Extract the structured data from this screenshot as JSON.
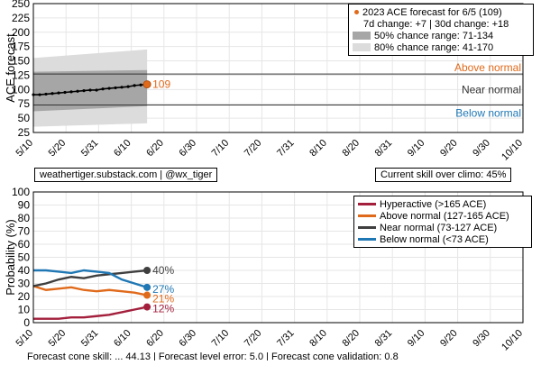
{
  "top_chart": {
    "ylabel": "ACE forecast",
    "zone_labels": {
      "above": "Above normal",
      "near": "Near normal",
      "below": "Below normal"
    },
    "point_label": "109",
    "legend": {
      "line1": "2023 ACE forecast for 6/5 (109)",
      "line2": "7d change: +7 | 30d change: +18",
      "band50": "50% chance range: 71-134",
      "band80": "80% chance range: 41-170"
    },
    "info_left": "weathertiger.substack.com | @wx_tiger",
    "info_right": "Current skill over climo: 45%"
  },
  "bottom_chart": {
    "ylabel": "Probability (%)",
    "legend": [
      {
        "label": "Hyperactive (>165 ACE)",
        "color": "#a31f3c"
      },
      {
        "label": "Above normal (127-165 ACE)",
        "color": "#e06a1b"
      },
      {
        "label": "Near normal (73-127 ACE)",
        "color": "#3f3f3f"
      },
      {
        "label": "Below normal (<73 ACE)",
        "color": "#1f77b4"
      }
    ],
    "end_labels": [
      "12%",
      "21%",
      "40%",
      "27%"
    ]
  },
  "footer": {
    "text": "Forecast cone skill: ... 44.13 | Forecast level error: 5.0 | Forecast cone validation: 0.8"
  },
  "chart_data": [
    {
      "type": "line",
      "title": "",
      "ylabel": "ACE forecast",
      "ylim": [
        25,
        250
      ],
      "yticks": [
        25,
        50,
        75,
        100,
        125,
        150,
        175,
        200,
        225,
        250
      ],
      "xticks": [
        "5/10",
        "5/20",
        "5/31",
        "6/10",
        "6/20",
        "6/30",
        "7/10",
        "7/20",
        "7/31",
        "8/10",
        "8/20",
        "8/31",
        "9/10",
        "9/20",
        "9/30",
        "10/10"
      ],
      "x_day_range": [
        0,
        155
      ],
      "thresholds": {
        "above_normal": 127,
        "below_normal": 73
      },
      "grid": true,
      "legend_position": "top-right",
      "series": [
        {
          "name": "2023 ACE forecast",
          "x_days": [
            0,
            2,
            4,
            6,
            8,
            10,
            12,
            14,
            16,
            18,
            20,
            22,
            24,
            26,
            28,
            30,
            32,
            34,
            36
          ],
          "values": [
            91,
            91,
            92,
            93,
            94,
            95,
            96,
            97,
            98,
            99,
            99,
            101,
            102,
            103,
            104,
            105,
            107,
            108,
            109
          ]
        }
      ],
      "band_50": {
        "x_days": [
          0,
          36
        ],
        "low": [
          62,
          71
        ],
        "high": [
          131,
          134
        ]
      },
      "band_80": {
        "x_days": [
          0,
          36
        ],
        "low": [
          35,
          41
        ],
        "high": [
          155,
          170
        ]
      },
      "current": {
        "x_day": 36,
        "value": 109
      }
    },
    {
      "type": "line",
      "title": "",
      "ylabel": "Probability (%)",
      "ylim": [
        0,
        100
      ],
      "yticks": [
        0,
        10,
        20,
        30,
        40,
        50,
        60,
        70,
        80,
        90,
        100
      ],
      "xticks": [
        "5/10",
        "5/20",
        "5/31",
        "6/10",
        "6/20",
        "6/30",
        "7/10",
        "7/20",
        "7/31",
        "8/10",
        "8/20",
        "8/31",
        "9/10",
        "9/20",
        "9/30",
        "10/10"
      ],
      "x_day_range": [
        0,
        155
      ],
      "grid": true,
      "legend_position": "top-right",
      "series": [
        {
          "name": "Hyperactive (>165 ACE)",
          "color": "#a31f3c",
          "x_days": [
            0,
            4,
            8,
            12,
            16,
            20,
            24,
            28,
            32,
            36
          ],
          "values": [
            3,
            3,
            3,
            4,
            4,
            5,
            6,
            8,
            10,
            12
          ]
        },
        {
          "name": "Above normal (127-165 ACE)",
          "color": "#e06a1b",
          "x_days": [
            0,
            4,
            8,
            12,
            16,
            20,
            24,
            28,
            32,
            36
          ],
          "values": [
            28,
            25,
            26,
            27,
            25,
            24,
            25,
            24,
            23,
            21
          ]
        },
        {
          "name": "Near normal (73-127 ACE)",
          "color": "#3f3f3f",
          "x_days": [
            0,
            4,
            8,
            12,
            16,
            20,
            24,
            28,
            32,
            36
          ],
          "values": [
            28,
            30,
            33,
            35,
            34,
            36,
            37,
            38,
            39,
            40
          ]
        },
        {
          "name": "Below normal (<73 ACE)",
          "color": "#1f77b4",
          "x_days": [
            0,
            4,
            8,
            12,
            16,
            20,
            24,
            28,
            32,
            36
          ],
          "values": [
            40,
            40,
            39,
            38,
            40,
            39,
            38,
            33,
            30,
            27
          ]
        }
      ]
    }
  ]
}
